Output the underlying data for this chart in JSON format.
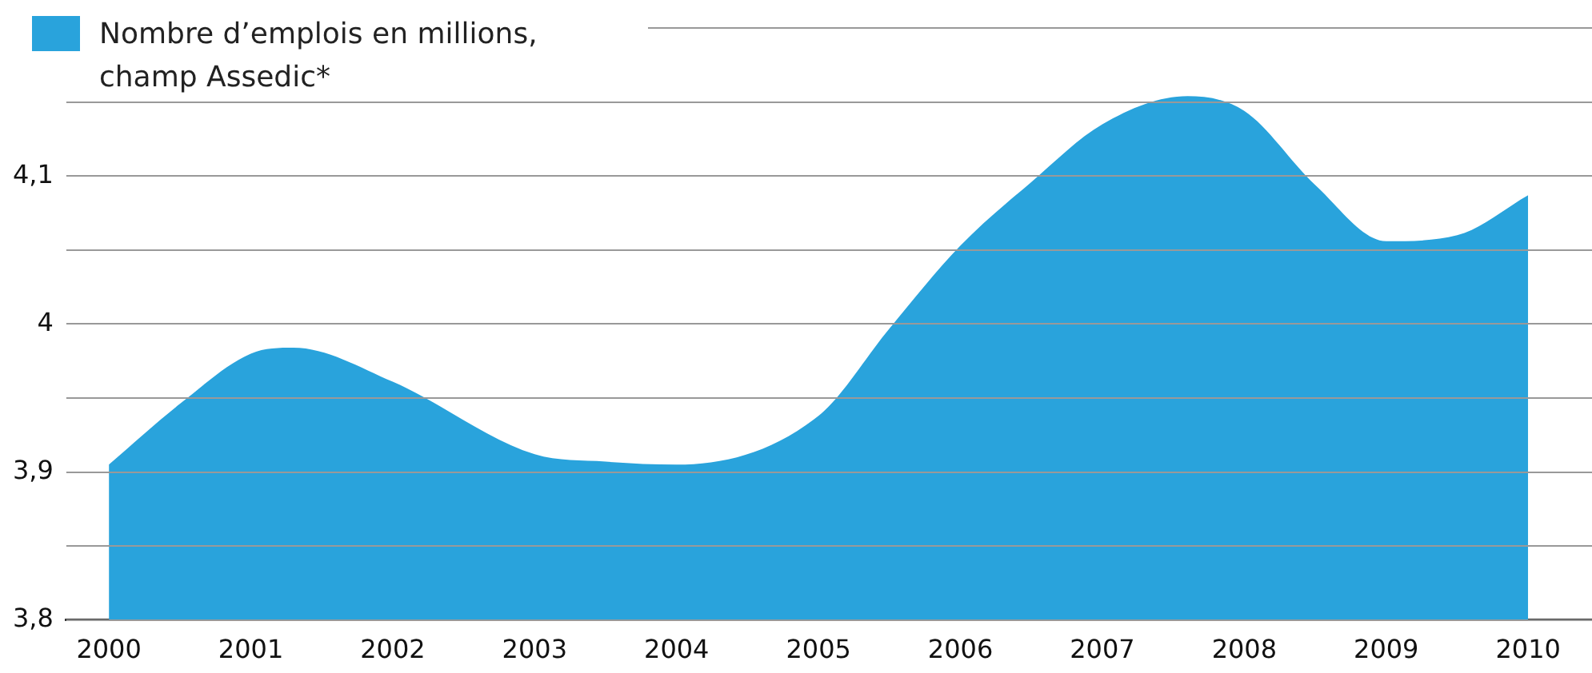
{
  "chart_data": {
    "type": "area",
    "legend": "top left",
    "grid": "y",
    "marker": "none",
    "x": [
      2000,
      2000.5,
      2001,
      2001.3,
      2002,
      2003,
      2003.5,
      2004,
      2005,
      2005.5,
      2006,
      2006.5,
      2007,
      2007.6,
      2008,
      2008.5,
      2009,
      2009.5,
      2010
    ],
    "series": [
      {
        "name": "Nombre d’emplois en millions, champ Assedic*",
        "color": "#29a3dc",
        "values": [
          3.905,
          3.946,
          3.98,
          3.984,
          3.961,
          3.912,
          3.907,
          3.905,
          3.938,
          3.997,
          4.053,
          4.096,
          4.135,
          4.154,
          4.144,
          4.094,
          4.056,
          4.06,
          4.087
        ]
      }
    ],
    "xlim": [
      1999.7,
      2010.45
    ],
    "xticks": [
      2000,
      2001,
      2002,
      2003,
      2004,
      2005,
      2006,
      2007,
      2008,
      2009,
      2010
    ],
    "ylim": [
      3.8,
      4.2
    ],
    "yticks": [
      {
        "value": 3.8,
        "label": "3,8"
      },
      {
        "value": 3.85,
        "label": null
      },
      {
        "value": 3.9,
        "label": "3,9"
      },
      {
        "value": 3.95,
        "label": null
      },
      {
        "value": 4,
        "label": "4"
      },
      {
        "value": 4.05,
        "label": null
      },
      {
        "value": 4.1,
        "label": "4,1"
      },
      {
        "value": 4.15,
        "label": null
      },
      {
        "value": 4.2,
        "label": null
      }
    ]
  }
}
